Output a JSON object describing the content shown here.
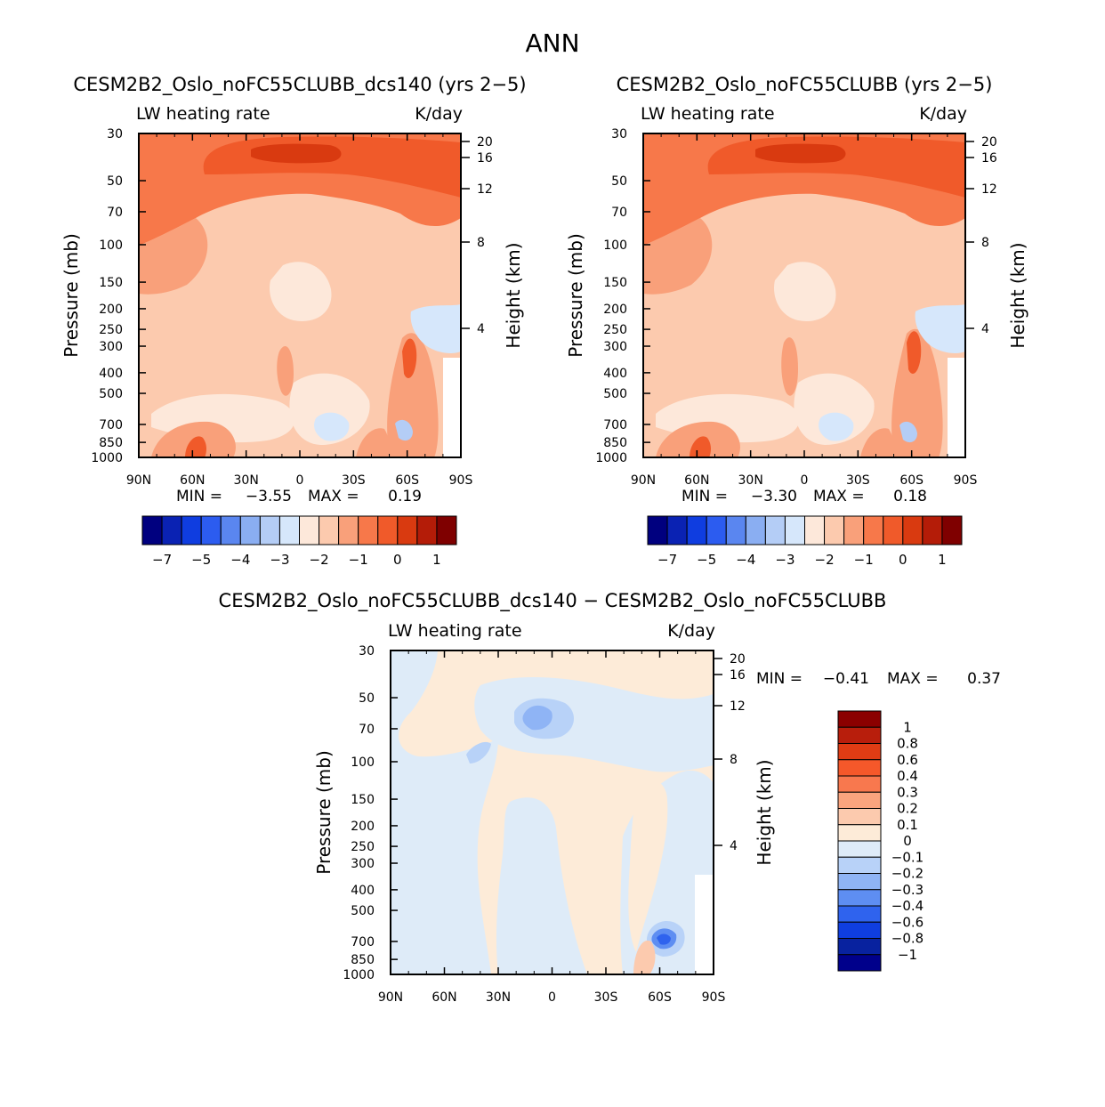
{
  "figure_title": "ANN",
  "chart_data": [
    {
      "type": "heatmap",
      "title": "CESM2B2_Oslo_noFC55CLUBB_dcs140 (yrs 2−5)",
      "left_label": "LW heating rate",
      "right_label": "K/day",
      "xlabel": "",
      "ylabel": "Pressure (mb)",
      "ylabel_right": "Height (km)",
      "x_ticks": [
        "90N",
        "60N",
        "30N",
        "0",
        "30S",
        "60S",
        "90S"
      ],
      "y_ticks": [
        "30",
        "50",
        "70",
        "100",
        "150",
        "200",
        "250",
        "300",
        "400",
        "500",
        "700",
        "850",
        "1000"
      ],
      "y_ticks_right": [
        "20",
        "16",
        "12",
        "8",
        "4"
      ],
      "min_label": "MIN =",
      "min_value": "−3.55",
      "max_label": "MAX =",
      "max_value": "0.19",
      "colorbar_labels": [
        "−7",
        "−5",
        "−4",
        "−3",
        "−2",
        "−1",
        "0",
        "1"
      ],
      "colors": [
        "#00007f",
        "#0a22b3",
        "#0f3de0",
        "#2c5cf0",
        "#5a86f0",
        "#8aaef2",
        "#b4cdf6",
        "#d6e7fb",
        "#fde8da",
        "#fccaae",
        "#f9a07a",
        "#f7784a",
        "#f05a2a",
        "#d93a10",
        "#b41c08",
        "#7f0000"
      ]
    },
    {
      "type": "heatmap",
      "title": "CESM2B2_Oslo_noFC55CLUBB (yrs 2−5)",
      "left_label": "LW heating rate",
      "right_label": "K/day",
      "xlabel": "",
      "ylabel": "Pressure (mb)",
      "ylabel_right": "Height (km)",
      "x_ticks": [
        "90N",
        "60N",
        "30N",
        "0",
        "30S",
        "60S",
        "90S"
      ],
      "y_ticks": [
        "30",
        "50",
        "70",
        "100",
        "150",
        "200",
        "250",
        "300",
        "400",
        "500",
        "700",
        "850",
        "1000"
      ],
      "y_ticks_right": [
        "20",
        "16",
        "12",
        "8",
        "4"
      ],
      "min_label": "MIN =",
      "min_value": "−3.30",
      "max_label": "MAX =",
      "max_value": "0.18",
      "colorbar_labels": [
        "−7",
        "−5",
        "−4",
        "−3",
        "−2",
        "−1",
        "0",
        "1"
      ],
      "colors": [
        "#00007f",
        "#0a22b3",
        "#0f3de0",
        "#2c5cf0",
        "#5a86f0",
        "#8aaef2",
        "#b4cdf6",
        "#d6e7fb",
        "#fde8da",
        "#fccaae",
        "#f9a07a",
        "#f7784a",
        "#f05a2a",
        "#d93a10",
        "#b41c08",
        "#7f0000"
      ]
    },
    {
      "type": "heatmap",
      "title": "CESM2B2_Oslo_noFC55CLUBB_dcs140 − CESM2B2_Oslo_noFC55CLUBB",
      "left_label": "LW heating rate",
      "right_label": "K/day",
      "xlabel": "",
      "ylabel": "Pressure (mb)",
      "ylabel_right": "Height (km)",
      "x_ticks": [
        "90N",
        "60N",
        "30N",
        "0",
        "30S",
        "60S",
        "90S"
      ],
      "y_ticks": [
        "30",
        "50",
        "70",
        "100",
        "150",
        "200",
        "250",
        "300",
        "400",
        "500",
        "700",
        "850",
        "1000"
      ],
      "y_ticks_right": [
        "20",
        "16",
        "12",
        "8",
        "4"
      ],
      "min_label": "MIN =",
      "min_value": "−0.41",
      "max_label": "MAX =",
      "max_value": "0.37",
      "colorbar_labels": [
        "1",
        "0.8",
        "0.6",
        "0.4",
        "0.3",
        "0.2",
        "0.1",
        "0",
        "−0.1",
        "−0.2",
        "−0.3",
        "−0.4",
        "−0.6",
        "−0.8",
        "−1"
      ],
      "colors": [
        "#8b0000",
        "#b81e0c",
        "#e03c14",
        "#f5582a",
        "#f8784e",
        "#faa47e",
        "#fccaae",
        "#fdebd8",
        "#deebf8",
        "#b8d2f8",
        "#8fb4f5",
        "#5e8ef2",
        "#2f63ee",
        "#0f3ee0",
        "#08229f",
        "#00008b"
      ]
    }
  ]
}
